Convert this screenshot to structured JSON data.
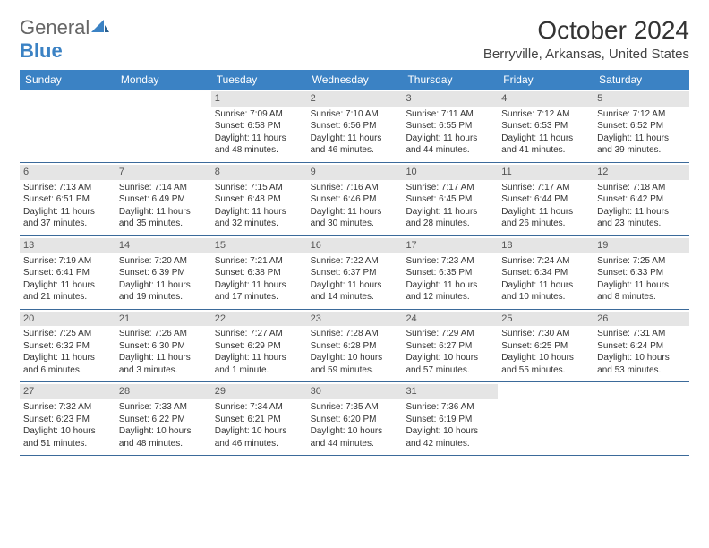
{
  "logo": {
    "part1": "General",
    "part2": "Blue"
  },
  "title": "October 2024",
  "location": "Berryville, Arkansas, United States",
  "day_names": [
    "Sunday",
    "Monday",
    "Tuesday",
    "Wednesday",
    "Thursday",
    "Friday",
    "Saturday"
  ],
  "colors": {
    "header_bg": "#3b82c4",
    "divider": "#3b6a9a",
    "daynum_bg": "#e5e5e5"
  },
  "weeks": [
    [
      null,
      null,
      {
        "n": "1",
        "sr": "Sunrise: 7:09 AM",
        "ss": "Sunset: 6:58 PM",
        "d1": "Daylight: 11 hours",
        "d2": "and 48 minutes."
      },
      {
        "n": "2",
        "sr": "Sunrise: 7:10 AM",
        "ss": "Sunset: 6:56 PM",
        "d1": "Daylight: 11 hours",
        "d2": "and 46 minutes."
      },
      {
        "n": "3",
        "sr": "Sunrise: 7:11 AM",
        "ss": "Sunset: 6:55 PM",
        "d1": "Daylight: 11 hours",
        "d2": "and 44 minutes."
      },
      {
        "n": "4",
        "sr": "Sunrise: 7:12 AM",
        "ss": "Sunset: 6:53 PM",
        "d1": "Daylight: 11 hours",
        "d2": "and 41 minutes."
      },
      {
        "n": "5",
        "sr": "Sunrise: 7:12 AM",
        "ss": "Sunset: 6:52 PM",
        "d1": "Daylight: 11 hours",
        "d2": "and 39 minutes."
      }
    ],
    [
      {
        "n": "6",
        "sr": "Sunrise: 7:13 AM",
        "ss": "Sunset: 6:51 PM",
        "d1": "Daylight: 11 hours",
        "d2": "and 37 minutes."
      },
      {
        "n": "7",
        "sr": "Sunrise: 7:14 AM",
        "ss": "Sunset: 6:49 PM",
        "d1": "Daylight: 11 hours",
        "d2": "and 35 minutes."
      },
      {
        "n": "8",
        "sr": "Sunrise: 7:15 AM",
        "ss": "Sunset: 6:48 PM",
        "d1": "Daylight: 11 hours",
        "d2": "and 32 minutes."
      },
      {
        "n": "9",
        "sr": "Sunrise: 7:16 AM",
        "ss": "Sunset: 6:46 PM",
        "d1": "Daylight: 11 hours",
        "d2": "and 30 minutes."
      },
      {
        "n": "10",
        "sr": "Sunrise: 7:17 AM",
        "ss": "Sunset: 6:45 PM",
        "d1": "Daylight: 11 hours",
        "d2": "and 28 minutes."
      },
      {
        "n": "11",
        "sr": "Sunrise: 7:17 AM",
        "ss": "Sunset: 6:44 PM",
        "d1": "Daylight: 11 hours",
        "d2": "and 26 minutes."
      },
      {
        "n": "12",
        "sr": "Sunrise: 7:18 AM",
        "ss": "Sunset: 6:42 PM",
        "d1": "Daylight: 11 hours",
        "d2": "and 23 minutes."
      }
    ],
    [
      {
        "n": "13",
        "sr": "Sunrise: 7:19 AM",
        "ss": "Sunset: 6:41 PM",
        "d1": "Daylight: 11 hours",
        "d2": "and 21 minutes."
      },
      {
        "n": "14",
        "sr": "Sunrise: 7:20 AM",
        "ss": "Sunset: 6:39 PM",
        "d1": "Daylight: 11 hours",
        "d2": "and 19 minutes."
      },
      {
        "n": "15",
        "sr": "Sunrise: 7:21 AM",
        "ss": "Sunset: 6:38 PM",
        "d1": "Daylight: 11 hours",
        "d2": "and 17 minutes."
      },
      {
        "n": "16",
        "sr": "Sunrise: 7:22 AM",
        "ss": "Sunset: 6:37 PM",
        "d1": "Daylight: 11 hours",
        "d2": "and 14 minutes."
      },
      {
        "n": "17",
        "sr": "Sunrise: 7:23 AM",
        "ss": "Sunset: 6:35 PM",
        "d1": "Daylight: 11 hours",
        "d2": "and 12 minutes."
      },
      {
        "n": "18",
        "sr": "Sunrise: 7:24 AM",
        "ss": "Sunset: 6:34 PM",
        "d1": "Daylight: 11 hours",
        "d2": "and 10 minutes."
      },
      {
        "n": "19",
        "sr": "Sunrise: 7:25 AM",
        "ss": "Sunset: 6:33 PM",
        "d1": "Daylight: 11 hours",
        "d2": "and 8 minutes."
      }
    ],
    [
      {
        "n": "20",
        "sr": "Sunrise: 7:25 AM",
        "ss": "Sunset: 6:32 PM",
        "d1": "Daylight: 11 hours",
        "d2": "and 6 minutes."
      },
      {
        "n": "21",
        "sr": "Sunrise: 7:26 AM",
        "ss": "Sunset: 6:30 PM",
        "d1": "Daylight: 11 hours",
        "d2": "and 3 minutes."
      },
      {
        "n": "22",
        "sr": "Sunrise: 7:27 AM",
        "ss": "Sunset: 6:29 PM",
        "d1": "Daylight: 11 hours",
        "d2": "and 1 minute."
      },
      {
        "n": "23",
        "sr": "Sunrise: 7:28 AM",
        "ss": "Sunset: 6:28 PM",
        "d1": "Daylight: 10 hours",
        "d2": "and 59 minutes."
      },
      {
        "n": "24",
        "sr": "Sunrise: 7:29 AM",
        "ss": "Sunset: 6:27 PM",
        "d1": "Daylight: 10 hours",
        "d2": "and 57 minutes."
      },
      {
        "n": "25",
        "sr": "Sunrise: 7:30 AM",
        "ss": "Sunset: 6:25 PM",
        "d1": "Daylight: 10 hours",
        "d2": "and 55 minutes."
      },
      {
        "n": "26",
        "sr": "Sunrise: 7:31 AM",
        "ss": "Sunset: 6:24 PM",
        "d1": "Daylight: 10 hours",
        "d2": "and 53 minutes."
      }
    ],
    [
      {
        "n": "27",
        "sr": "Sunrise: 7:32 AM",
        "ss": "Sunset: 6:23 PM",
        "d1": "Daylight: 10 hours",
        "d2": "and 51 minutes."
      },
      {
        "n": "28",
        "sr": "Sunrise: 7:33 AM",
        "ss": "Sunset: 6:22 PM",
        "d1": "Daylight: 10 hours",
        "d2": "and 48 minutes."
      },
      {
        "n": "29",
        "sr": "Sunrise: 7:34 AM",
        "ss": "Sunset: 6:21 PM",
        "d1": "Daylight: 10 hours",
        "d2": "and 46 minutes."
      },
      {
        "n": "30",
        "sr": "Sunrise: 7:35 AM",
        "ss": "Sunset: 6:20 PM",
        "d1": "Daylight: 10 hours",
        "d2": "and 44 minutes."
      },
      {
        "n": "31",
        "sr": "Sunrise: 7:36 AM",
        "ss": "Sunset: 6:19 PM",
        "d1": "Daylight: 10 hours",
        "d2": "and 42 minutes."
      },
      null,
      null
    ]
  ]
}
